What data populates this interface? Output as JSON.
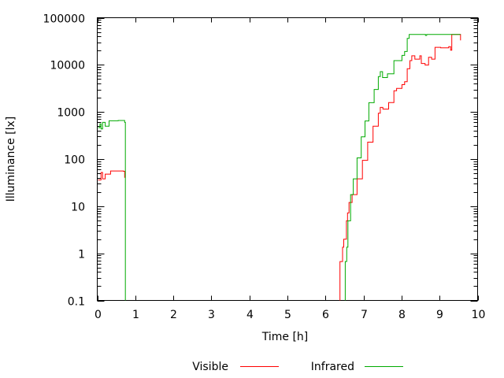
{
  "chart_data": {
    "type": "line",
    "title": "",
    "xlabel": "Time [h]",
    "ylabel": "Illuminance [lx]",
    "xlim": [
      0,
      10
    ],
    "ylim": [
      0.1,
      100000
    ],
    "yscale": "log",
    "grid": false,
    "legend_position": "bottom",
    "xticks": [
      "0",
      "1",
      "2",
      "3",
      "4",
      "5",
      "6",
      "7",
      "8",
      "9",
      "10"
    ],
    "yticks": [
      "0.1",
      "1",
      "10",
      "100",
      "1000",
      "10000",
      "100000"
    ],
    "series": [
      {
        "name": "Visible",
        "color": "#ff0000",
        "segments": [
          [
            [
              0.02,
              36
            ],
            [
              0.1,
              52
            ],
            [
              0.14,
              38
            ],
            [
              0.21,
              48
            ],
            [
              0.35,
              56
            ],
            [
              0.69,
              55
            ],
            [
              0.72,
              40
            ]
          ],
          [
            [
              6.38,
              0.1
            ],
            [
              6.38,
              0.67
            ],
            [
              6.45,
              1.35
            ],
            [
              6.48,
              2.0
            ],
            [
              6.55,
              4.9
            ],
            [
              6.58,
              7.2
            ],
            [
              6.62,
              12
            ],
            [
              6.7,
              17.6
            ],
            [
              6.83,
              38
            ],
            [
              6.97,
              94
            ],
            [
              7.11,
              229
            ],
            [
              7.25,
              500
            ],
            [
              7.39,
              940
            ],
            [
              7.44,
              1250
            ],
            [
              7.51,
              1150
            ],
            [
              7.66,
              1580
            ],
            [
              7.8,
              2820
            ],
            [
              7.87,
              3170
            ],
            [
              8.01,
              3800
            ],
            [
              8.08,
              4370
            ],
            [
              8.15,
              8300
            ],
            [
              8.22,
              12300
            ],
            [
              8.27,
              15500
            ],
            [
              8.35,
              13200
            ],
            [
              8.48,
              15500
            ],
            [
              8.52,
              10700
            ],
            [
              8.62,
              9900
            ],
            [
              8.71,
              14500
            ],
            [
              8.79,
              13200
            ],
            [
              8.88,
              23500
            ],
            [
              9.03,
              23000
            ],
            [
              9.24,
              24400
            ],
            [
              9.29,
              20500
            ],
            [
              9.32,
              21700
            ],
            [
              9.32,
              44300
            ],
            [
              9.55,
              44300
            ],
            [
              9.55,
              33000
            ]
          ]
        ]
      },
      {
        "name": "Infrared",
        "color": "#00aa00",
        "segments": [
          [
            [
              0.02,
              465
            ],
            [
              0.07,
              560
            ],
            [
              0.1,
              435
            ],
            [
              0.14,
              600
            ],
            [
              0.21,
              500
            ],
            [
              0.31,
              650
            ],
            [
              0.55,
              660
            ],
            [
              0.72,
              600
            ],
            [
              0.74,
              465
            ],
            [
              0.74,
              0.1
            ]
          ],
          [
            [
              6.52,
              0.1
            ],
            [
              6.52,
              0.67
            ],
            [
              6.56,
              1.35
            ],
            [
              6.59,
              4.9
            ],
            [
              6.66,
              17.6
            ],
            [
              6.73,
              38
            ],
            [
              6.83,
              106
            ],
            [
              6.94,
              297
            ],
            [
              7.04,
              645
            ],
            [
              7.14,
              1575
            ],
            [
              7.28,
              3000
            ],
            [
              7.39,
              5650
            ],
            [
              7.44,
              7160
            ],
            [
              7.5,
              5370
            ],
            [
              7.63,
              6460
            ],
            [
              7.8,
              12300
            ],
            [
              8.01,
              15800
            ],
            [
              8.08,
              19200
            ],
            [
              8.15,
              36500
            ],
            [
              8.2,
              44300
            ],
            [
              8.6,
              44300
            ],
            [
              8.63,
              42000
            ],
            [
              8.66,
              44300
            ],
            [
              9.55,
              44300
            ]
          ]
        ]
      }
    ]
  }
}
